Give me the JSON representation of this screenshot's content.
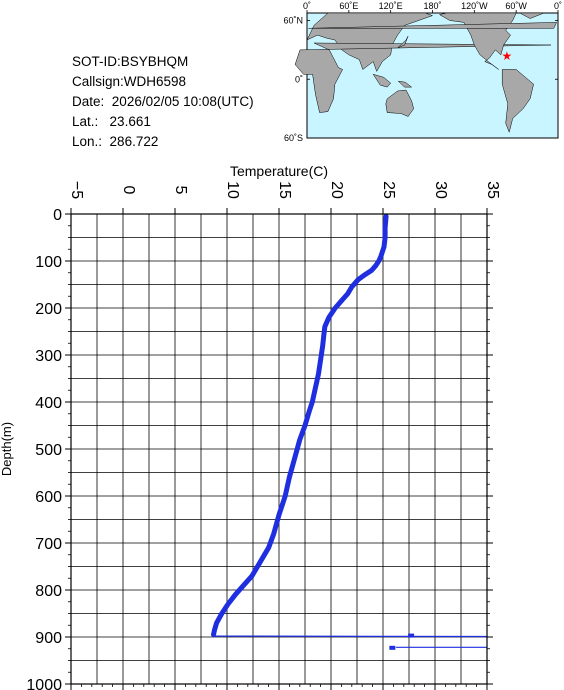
{
  "info": {
    "sot_id": "SOT-ID:BSYBHQM",
    "callsign": "Callsign:WDH6598",
    "date_label": "Date:",
    "date_value": "2026/02/05 10:08(UTC)",
    "lat_label": "Lat.:",
    "lat_value": "23.661",
    "lon_label": "Lon.:",
    "lon_value": "286.722"
  },
  "map": {
    "top_labels": [
      "0˚",
      "60˚E",
      "120˚E",
      "180˚",
      "120˚W",
      "60˚W",
      "0˚"
    ],
    "left_labels": [
      "60˚N",
      "0˚",
      "60˚S"
    ],
    "ocean_color": "#c8f5ff",
    "land_color": "#a8a8a8",
    "marker_color": "#ff0000",
    "marker_lon": 286.722,
    "marker_lat": 23.661
  },
  "chart_data": {
    "type": "line",
    "xlabel": "Temperature(C)",
    "ylabel": "Depth(m)",
    "xlim": [
      -5,
      35
    ],
    "ylim": [
      1000,
      0
    ],
    "x_ticks": [
      "-5",
      "0",
      "5",
      "10",
      "15",
      "20",
      "25",
      "30",
      "35"
    ],
    "y_ticks": [
      "0",
      "100",
      "200",
      "300",
      "400",
      "500",
      "600",
      "700",
      "800",
      "900",
      "1000"
    ],
    "grid": true,
    "line_color": "#1f2fe0",
    "series": [
      {
        "points": [
          [
            25.3,
            5
          ],
          [
            25.2,
            30
          ],
          [
            25.2,
            50
          ],
          [
            25.1,
            70
          ],
          [
            24.8,
            90
          ],
          [
            24.6,
            100
          ],
          [
            24.3,
            110
          ],
          [
            23.9,
            120
          ],
          [
            23.2,
            130
          ],
          [
            22.6,
            140
          ],
          [
            22.0,
            155
          ],
          [
            21.6,
            170
          ],
          [
            21.0,
            185
          ],
          [
            20.4,
            200
          ],
          [
            19.8,
            220
          ],
          [
            19.4,
            240
          ],
          [
            19.3,
            260
          ],
          [
            19.2,
            280
          ],
          [
            19.0,
            310
          ],
          [
            18.8,
            340
          ],
          [
            18.5,
            370
          ],
          [
            18.2,
            400
          ],
          [
            17.9,
            420
          ],
          [
            17.5,
            450
          ],
          [
            17.0,
            480
          ],
          [
            16.5,
            520
          ],
          [
            16.0,
            560
          ],
          [
            15.6,
            600
          ],
          [
            15.0,
            640
          ],
          [
            14.5,
            680
          ],
          [
            14.0,
            710
          ],
          [
            13.2,
            740
          ],
          [
            12.4,
            770
          ],
          [
            11.6,
            790
          ],
          [
            10.8,
            810
          ],
          [
            10.1,
            830
          ],
          [
            9.5,
            850
          ],
          [
            9.0,
            870
          ],
          [
            8.8,
            885
          ],
          [
            8.7,
            895
          ]
        ]
      },
      {
        "points": [
          [
            8.8,
            898
          ],
          [
            35.0,
            899
          ]
        ]
      },
      {
        "points": [
          [
            26.3,
            922
          ],
          [
            35.0,
            922
          ]
        ]
      }
    ],
    "markers": [
      [
        27.7,
        897
      ],
      [
        25.9,
        923
      ]
    ]
  }
}
